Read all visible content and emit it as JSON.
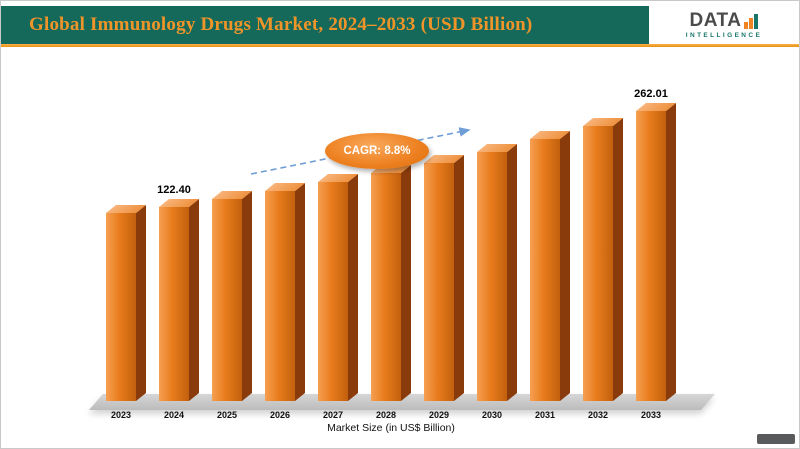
{
  "header": {
    "title": "Global Immunology Drugs Market, 2024–2033 (USD Billion)",
    "logo": {
      "name": "DATA",
      "sub": "INTELLIGENCE"
    }
  },
  "chart_data": {
    "type": "bar",
    "title": "Global Immunology Drugs Market, 2024–2033 (USD Billion)",
    "categories": [
      "2023",
      "2024",
      "2025",
      "2026",
      "2027",
      "2028",
      "2029",
      "2030",
      "2031",
      "2032",
      "2033"
    ],
    "values": [
      112.5,
      122.4,
      133.17,
      144.89,
      157.64,
      171.51,
      186.6,
      203.02,
      220.89,
      240.33,
      262.01
    ],
    "value_labels": {
      "2024": "122.40",
      "2033": "262.01"
    },
    "annotation": "CAGR: 8.8%",
    "xlabel": "Market Size (in US$ Billion)",
    "ylabel": "",
    "legend": false,
    "grid": false,
    "bar_color": "#e87c1c",
    "bar_side_color": "#8a3b0b",
    "arrow_color": "#6f9ed6",
    "annotation_bg": "#ee8324"
  },
  "colors": {
    "header_bg": "#15695b",
    "header_title": "#ef9428",
    "accent_line": "#ec8f12",
    "floor": "#c6c6c6"
  }
}
